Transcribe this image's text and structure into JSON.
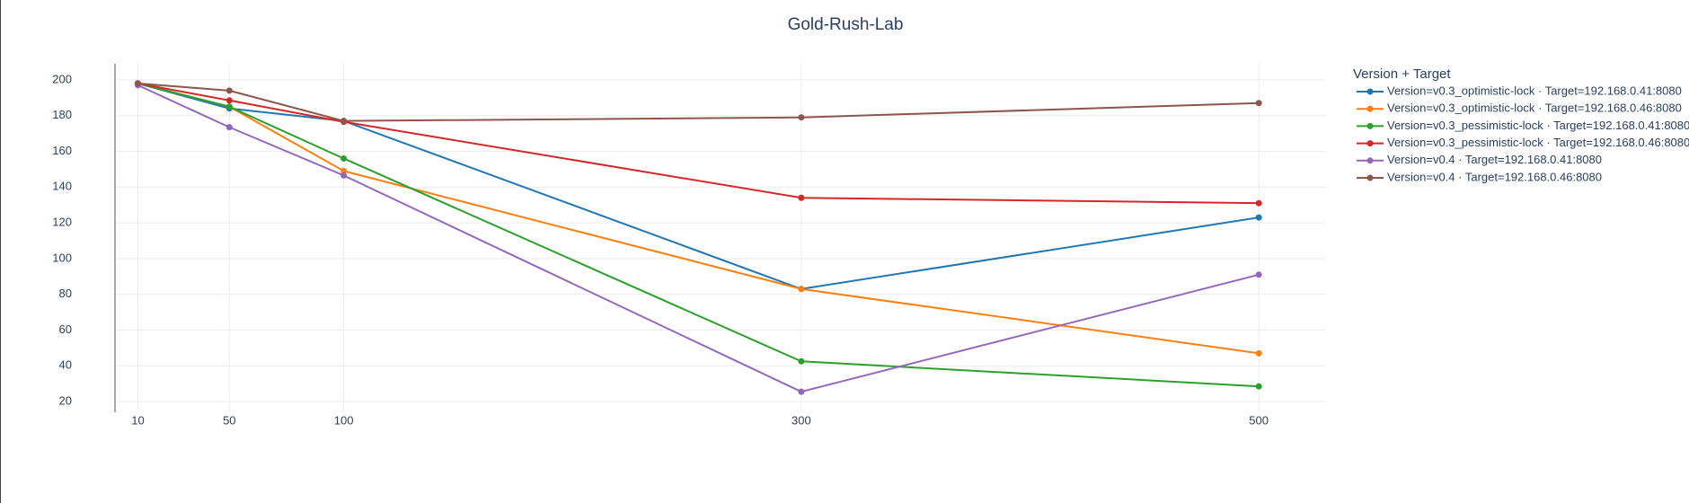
{
  "chart_data": {
    "type": "line",
    "title": "Gold-Rush-Lab",
    "legend_title": "Version + Target",
    "x": [
      10,
      50,
      100,
      300,
      500
    ],
    "xlim": [
      0,
      529
    ],
    "xticks": [
      10,
      50,
      100,
      300,
      500
    ],
    "ylim": [
      14,
      209
    ],
    "yticks": [
      20,
      40,
      60,
      80,
      100,
      120,
      140,
      160,
      180,
      200
    ],
    "grid": true,
    "legend": "right",
    "series": [
      {
        "name": "Version=v0.3_optimistic-lock · Target=192.168.0.41:8080",
        "color": "#1f77b4",
        "values": [
          198,
          184,
          177,
          83,
          123
        ]
      },
      {
        "name": "Version=v0.3_optimistic-lock · Target=192.168.0.46:8080",
        "color": "#ff7f0e",
        "values": [
          198,
          185,
          149,
          83,
          47
        ]
      },
      {
        "name": "Version=v0.3_pessimistic-lock · Target=192.168.0.41:8080",
        "color": "#2ca02c",
        "values": [
          198,
          185,
          156,
          42.5,
          28.5
        ]
      },
      {
        "name": "Version=v0.3_pessimistic-lock · Target=192.168.0.46:8080",
        "color": "#d62728",
        "values": [
          198,
          188.5,
          176.5,
          134,
          131
        ]
      },
      {
        "name": "Version=v0.4 · Target=192.168.0.41:8080",
        "color": "#9467bd",
        "values": [
          197,
          173.5,
          146.5,
          25.5,
          91
        ]
      },
      {
        "name": "Version=v0.4 · Target=192.168.0.46:8080",
        "color": "#8c564b",
        "values": [
          198,
          194,
          177,
          179,
          187
        ]
      }
    ]
  }
}
